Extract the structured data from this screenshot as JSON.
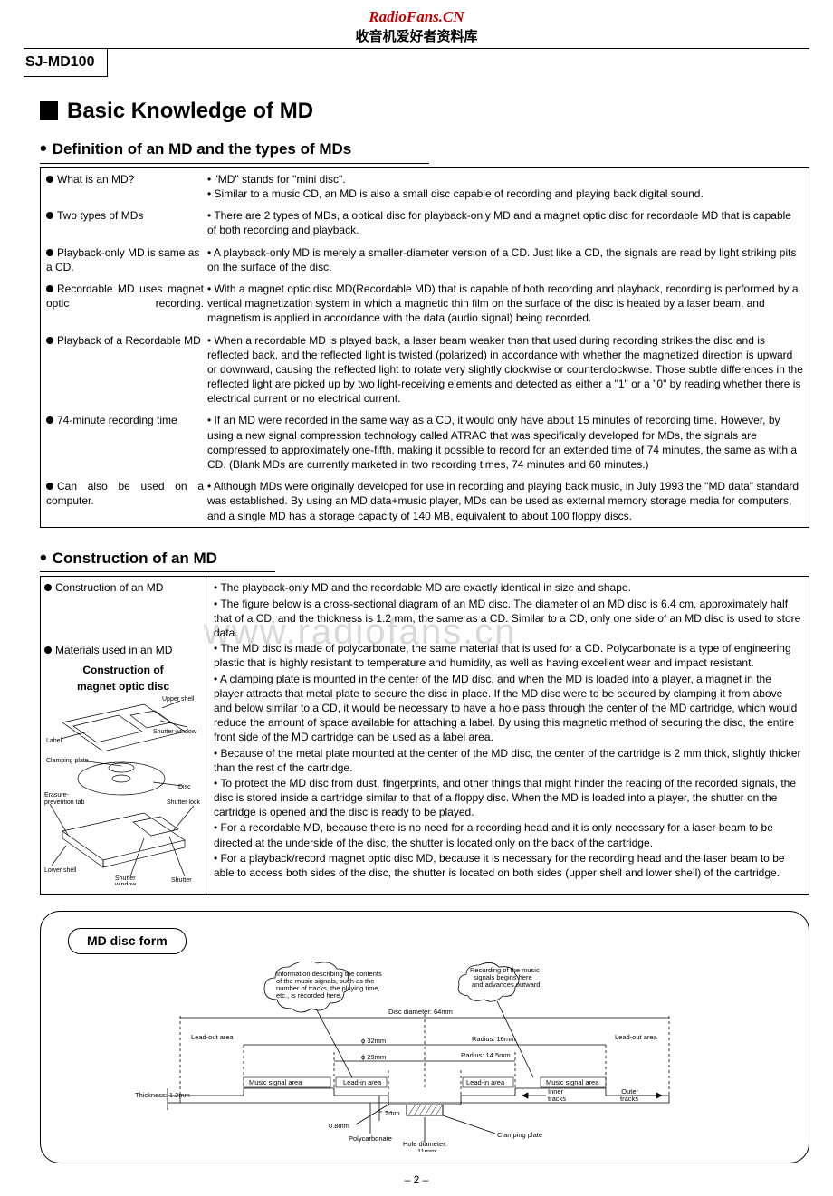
{
  "header": {
    "brand_line1": "RadioFans.CN",
    "brand_line2": "收音机爱好者资料库",
    "model": "SJ-MD100"
  },
  "title_main": "Basic Knowledge of MD",
  "watermark": "www.radiofans.cn",
  "page_number": "– 2 –",
  "section_def": {
    "heading": "Definition of an MD and the types of MDs",
    "rows": [
      {
        "label": "What is an MD?",
        "paras": [
          "\"MD\" stands for \"mini disc\".",
          "Similar to a music CD, an MD is also a small disc capable of recording and playing back digital sound."
        ]
      },
      {
        "label": "Two types of MDs",
        "paras": [
          "There are 2 types of MDs, a optical disc for playback-only MD and a magnet optic disc for recordable MD that is capable of both recording and playback."
        ]
      },
      {
        "label": "Playback-only MD is same as a CD.",
        "paras": [
          "A playback-only MD is merely a smaller-diameter version of a CD.  Just like a CD, the signals are read by light striking pits on the surface of the disc."
        ]
      },
      {
        "label": "Recordable MD uses magnet optic recording.",
        "justify": true,
        "paras": [
          "With a magnet optic disc MD(Recordable MD) that is capable of both recording and playback, recording is performed by a vertical magnetization system in which a magnetic thin film on the surface of the disc is heated by a laser beam, and magnetism is applied in accordance with the data (audio signal) being recorded."
        ]
      },
      {
        "label": "Playback of a Recordable MD",
        "paras": [
          "When a recordable MD is played back, a laser beam weaker than that used during recording strikes the disc and is reflected back, and the reflected light is twisted (polarized) in accordance with whether the magnetized direction is upward or downward, causing the reflected light to rotate very slightly clockwise or counterclockwise.  Those subtle differences in the reflected light are picked up by two light-receiving elements and detected as either a \"1\" or a \"0\" by reading whether there is electrical current or no electrical current."
        ]
      },
      {
        "label": "74-minute recording time",
        "paras": [
          "If an MD were recorded in the same way as a CD, it would only have about 15 minutes of recording time.  However, by using a new signal compression technology called ATRAC that was specifically developed for MDs, the signals are compressed to approximately one-fifth, making it possible to record for an extended time of 74 minutes, the same as with a CD.  (Blank MDs are currently marketed in two recording times, 74 minutes and 60 minutes.)"
        ]
      },
      {
        "label": "Can also be used on a computer.",
        "justify": true,
        "paras": [
          "Although MDs were originally developed for use in recording and playing back music, in July 1993 the \"MD data\" standard was established.  By using an MD data+music player, MDs can be used as external memory storage media for computers, and a single MD has a storage capacity of 140 MB, equivalent to about 100 floppy discs."
        ]
      }
    ]
  },
  "section_con": {
    "heading": "Construction of an MD",
    "left_labels": [
      "Construction of an MD",
      "Materials used in an MD"
    ],
    "diagram": {
      "title1": "Construction of",
      "title2": "magnet optic disc",
      "callouts": [
        "Upper shell",
        "Label",
        "Shutter window",
        "Clamping plate",
        "Disc",
        "Erasure-prevention tab",
        "Shutter lock",
        "Lower shell",
        "Shutter window",
        "Shutter"
      ]
    },
    "paras": [
      "The playback-only MD and the recordable MD are exactly identical in size and shape.",
      "The figure below is a cross-sectional diagram of an MD disc.  The diameter of an MD disc is 6.4 cm, approximately half that of a CD, and the thickness is 1.2 mm, the same as a CD.  Similar to a CD, only one side of an MD disc is used to store data.",
      "The MD disc is made of polycarbonate, the same material that is used for a CD.  Polycarbonate is a type of engineering plastic that is highly resistant to temperature and humidity, as well as having excellent wear and impact resistant.",
      "A clamping plate is mounted in the center of the MD disc, and when the MD is loaded into a player, a magnet in the player attracts that metal plate to secure the disc in place.  If the MD disc were to be secured by clamping it from above and below similar to a CD, it would be necessary to have a hole pass through the center of the MD cartridge, which would reduce the amount of space available for attaching a label.  By using this magnetic method of securing the disc, the entire front side of the MD cartridge can be used as a label area.",
      "Because of the metal plate mounted at the center of the MD disc, the center of the cartridge is 2 mm thick, slightly thicker than the rest of the cartridge.",
      "To protect the MD disc from dust, fingerprints, and other things that might hinder the reading of the recorded signals, the disc is stored inside a cartridge similar to that of a floppy disc.  When the MD is loaded into a player, the shutter on the cartridge is opened and the disc is ready to be played.",
      "For a recordable MD, because there is no need for a recording head and it is only necessary for a laser beam to be directed at the underside of the disc, the shutter is located only on the back of the cartridge.",
      "For a playback/record magnet optic disc MD, because it is necessary for the recording head and the laser beam to be able to access both sides of the disc, the shutter is located on both sides (upper shell and lower shell) of the cartridge."
    ]
  },
  "section_form": {
    "label": "MD disc form",
    "callouts": {
      "info_cloud": "Information describing the contents of the music signals, such as the number of tracks, the playing time, etc., is recorded here.",
      "rec_cloud": "Recording of the music signals begins here and advances outward",
      "disc_diameter": "Disc diameter: 64mm",
      "leadout_left": "Lead-out area",
      "leadout_right": "Lead-out area",
      "phi32": "ϕ 32mm",
      "radius16": "Radius: 16mm",
      "phi29": "ϕ 29mm",
      "radius145": "Radius: 14.5mm",
      "music_sig_left": "Music signal area",
      "leadin_left": "Lead-in area",
      "leadin_right": "Lead-in area",
      "music_sig_right": "Music signal area",
      "thickness": "Thickness: 1.2mm",
      "t2mm": "2mm",
      "inner": "Inner tracks",
      "outer": "Outer tracks",
      "t08mm": "0.8mm",
      "poly": "Polycarbonate",
      "clamp": "Clamping plate",
      "hole": "Hole diameter: 11mm"
    }
  }
}
